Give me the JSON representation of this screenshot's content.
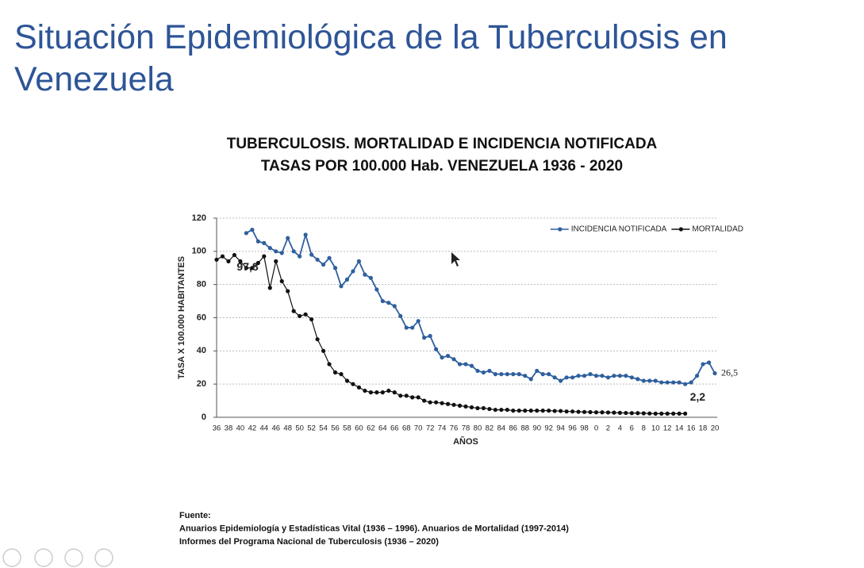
{
  "slide_title": "Situación Epidemiológica de la Tuberculosis en Venezuela",
  "chart_data": {
    "type": "line",
    "title": [
      "TUBERCULOSIS.  MORTALIDAD  E INCIDENCIA NOTIFICADA",
      "TASAS POR 100.000 Hab.   VENEZUELA 1936 - 2020"
    ],
    "x_label": "AÑOS",
    "y_label": "TASA X 100.000 HABITANTES",
    "categories": [
      "36",
      null,
      "38",
      null,
      "40",
      null,
      "42",
      null,
      "44",
      null,
      "46",
      null,
      "48",
      null,
      "50",
      null,
      "52",
      null,
      "54",
      null,
      "56",
      null,
      "58",
      null,
      "60",
      null,
      "62",
      null,
      "64",
      null,
      "66",
      null,
      "68",
      null,
      "70",
      null,
      "72",
      null,
      "74",
      null,
      "76",
      null,
      "78",
      null,
      "80",
      null,
      "82",
      null,
      "84",
      null,
      "86",
      null,
      "88",
      null,
      "90",
      null,
      "92",
      null,
      "94",
      null,
      "96",
      null,
      "98",
      null,
      "0",
      null,
      "2",
      null,
      "4",
      null,
      "6",
      null,
      "8",
      null,
      "10",
      null,
      "12",
      null,
      "14",
      null,
      "16",
      null,
      "18",
      null,
      "20"
    ],
    "ylim": [
      0,
      120
    ],
    "yticks": [
      0,
      20,
      40,
      60,
      80,
      100,
      120
    ],
    "grid": true,
    "legend": "top-right",
    "series": [
      {
        "name": "INCIDENCIA NOTIFICADA",
        "color": "#2e5f9e",
        "values": [
          null,
          null,
          null,
          null,
          null,
          111,
          113,
          106,
          105,
          102,
          100,
          99,
          108,
          100,
          97,
          110,
          98,
          95,
          92,
          96,
          90,
          79,
          83,
          88,
          94,
          86,
          84,
          77,
          70,
          69,
          67,
          61,
          54,
          54,
          58,
          48,
          49,
          41,
          36,
          37,
          35,
          32,
          32,
          31,
          28,
          27,
          28,
          26,
          26,
          26,
          26,
          26,
          25,
          23,
          28,
          26,
          26,
          24,
          22,
          24,
          24,
          25,
          25,
          26,
          25,
          25,
          24,
          25,
          25,
          25,
          24,
          23,
          22,
          22,
          22,
          21,
          21,
          21,
          21,
          20,
          21,
          25,
          32,
          33,
          26.5
        ],
        "value_labels": {
          "84": "26,5"
        }
      },
      {
        "name": "MORTALIDAD",
        "color": "#111111",
        "values": [
          95,
          97,
          94,
          97.8,
          94,
          90,
          90,
          93,
          97,
          78,
          94,
          82,
          76,
          64,
          61,
          62,
          59,
          47,
          40,
          32,
          27,
          26,
          22,
          20,
          18,
          16,
          15,
          15,
          15,
          16,
          15,
          13,
          13,
          12,
          12,
          10,
          9,
          9,
          8.5,
          8,
          7.5,
          7,
          6.5,
          6,
          5.5,
          5.5,
          5,
          4.5,
          4.5,
          4.5,
          4,
          4,
          4,
          4,
          4,
          4,
          4,
          3.8,
          3.8,
          3.5,
          3.5,
          3.3,
          3.2,
          3.1,
          3,
          3,
          2.9,
          2.8,
          2.7,
          2.6,
          2.5,
          2.5,
          2.4,
          2.3,
          2.2,
          2.2,
          2.2,
          2.2,
          2.2,
          2.2,
          null,
          null,
          null,
          null,
          null
        ],
        "value_labels": {
          "3": "97,8",
          "79": "2,2"
        }
      }
    ]
  },
  "source": [
    "Fuente:",
    "Anuarios Epidemiología y Estadísticas Vital (1936 – 1996).     Anuarios de Mortalidad (1997-2014)",
    "Informes del Programa  Nacional de Tuberculosis (1936 – 2020)"
  ]
}
